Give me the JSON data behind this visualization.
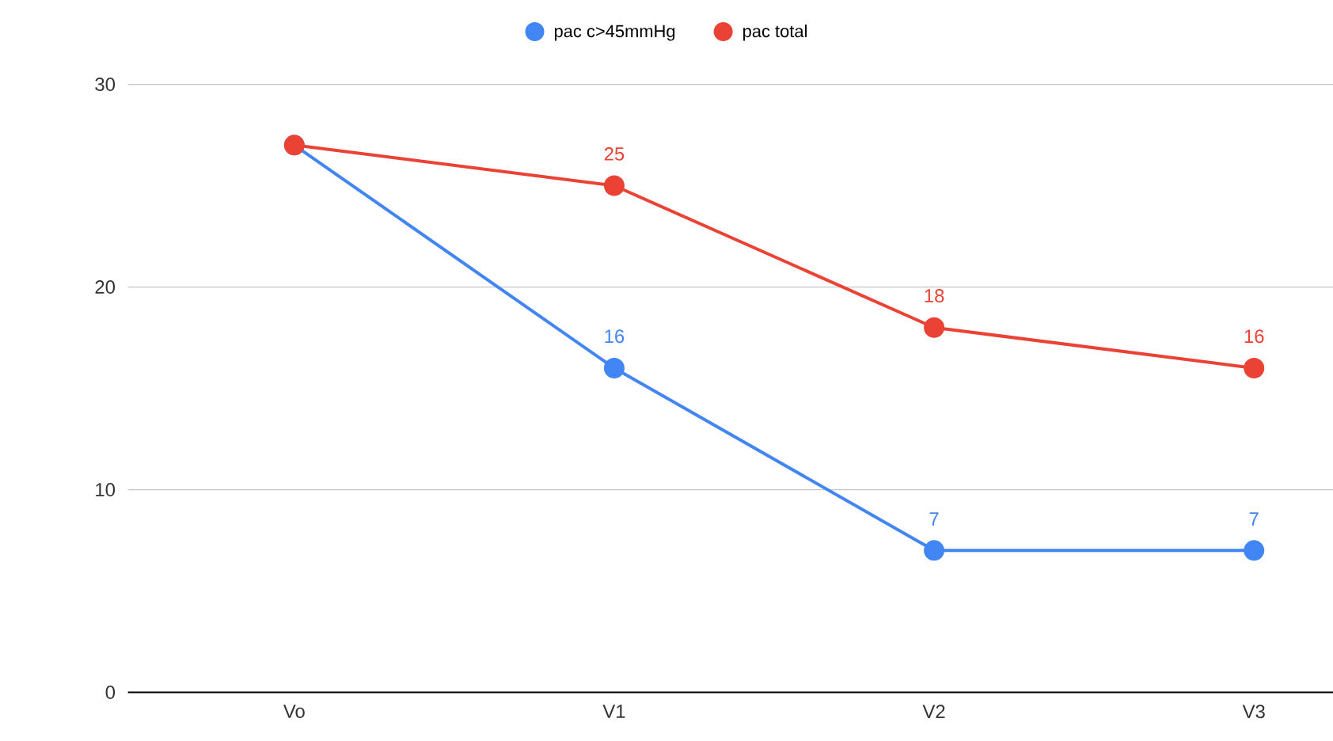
{
  "chart_data": {
    "type": "line",
    "categories": [
      "Vo",
      "V1",
      "V2",
      "V3"
    ],
    "series": [
      {
        "name": "pac c>45mmHg",
        "color": "#4285f4",
        "values": [
          27,
          16,
          7,
          7
        ],
        "value_labels": [
          null,
          "16",
          "7",
          "7"
        ]
      },
      {
        "name": "pac total",
        "color": "#ea4335",
        "values": [
          27,
          25,
          18,
          16
        ],
        "value_labels": [
          null,
          "25",
          "18",
          "16"
        ]
      }
    ],
    "ylim": [
      0,
      30
    ],
    "yticks": [
      0,
      10,
      20,
      30
    ],
    "grid": "y",
    "legend": "top",
    "marker": "circle",
    "line_style": "solid"
  }
}
